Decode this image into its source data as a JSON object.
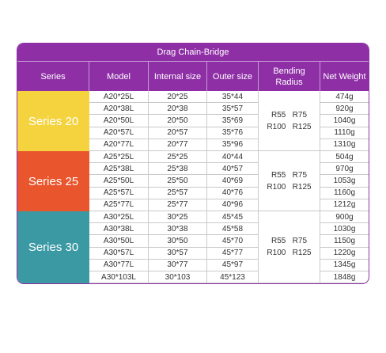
{
  "header": {
    "title": "Drag Chain-Bridge"
  },
  "table": {
    "columns": [
      "Series",
      "Model",
      "Internal size",
      "Outer size",
      "Bending Radius",
      "Net Weight"
    ],
    "groups": [
      {
        "series": "Series 20",
        "color": "#f5d33f",
        "bending": [
          "R55   R75",
          "R100   R125"
        ],
        "rows": [
          [
            "A20*25L",
            "20*25",
            "35*44",
            "474g"
          ],
          [
            "A20*38L",
            "20*38",
            "35*57",
            "920g"
          ],
          [
            "A20*50L",
            "20*50",
            "35*69",
            "1040g"
          ],
          [
            "A20*57L",
            "20*57",
            "35*76",
            "1110g"
          ],
          [
            "A20*77L",
            "20*77",
            "35*96",
            "1310g"
          ]
        ]
      },
      {
        "series": "Series 25",
        "color": "#e9552c",
        "bending": [
          "R55   R75",
          "R100   R125"
        ],
        "rows": [
          [
            "A25*25L",
            "25*25",
            "40*44",
            "504g"
          ],
          [
            "A25*38L",
            "25*38",
            "40*57",
            "970g"
          ],
          [
            "A25*50L",
            "25*50",
            "40*69",
            "1053g"
          ],
          [
            "A25*57L",
            "25*57",
            "40*76",
            "1160g"
          ],
          [
            "A25*77L",
            "25*77",
            "40*96",
            "1212g"
          ]
        ]
      },
      {
        "series": "Series 30",
        "color": "#3b99a4",
        "bending": [
          "R55   R75",
          "R100   R125"
        ],
        "rows": [
          [
            "A30*25L",
            "30*25",
            "45*45",
            "900g"
          ],
          [
            "A30*38L",
            "30*38",
            "45*58",
            "1030g"
          ],
          [
            "A30*50L",
            "30*50",
            "45*70",
            "1150g"
          ],
          [
            "A30*57L",
            "30*57",
            "45*77",
            "1220g"
          ],
          [
            "A30*77L",
            "30*77",
            "45*97",
            "1345g"
          ],
          [
            "A30*103L",
            "30*103",
            "45*123",
            "1848g"
          ]
        ]
      }
    ]
  }
}
